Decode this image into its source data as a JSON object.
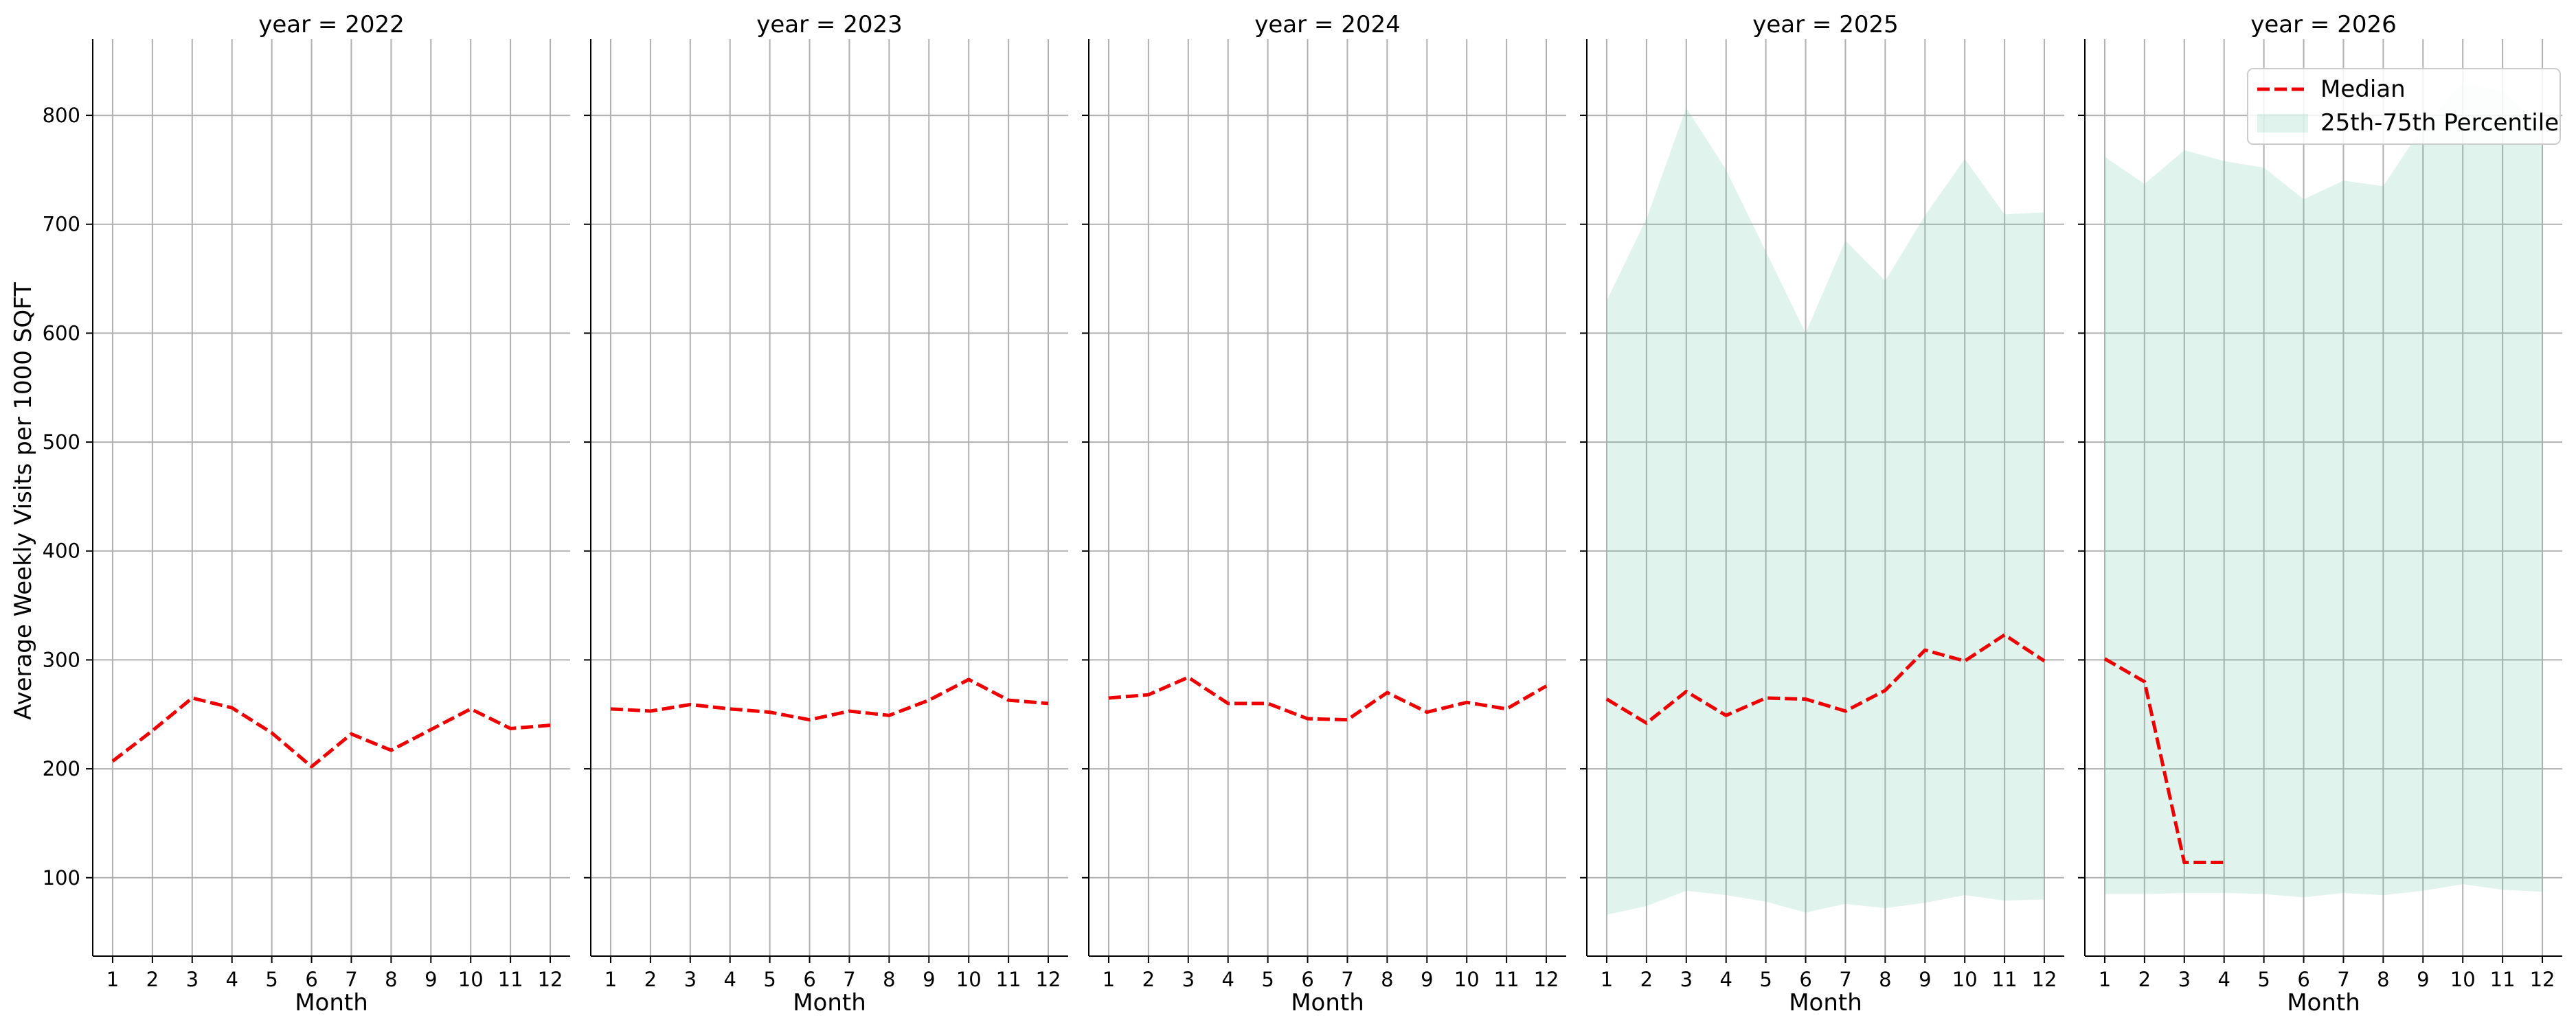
{
  "chart_data": {
    "type": "line",
    "facet_by": "year",
    "ylabel": "Average Weekly Visits per 1000 SQFT",
    "xlabel": "Month",
    "x_ticks": [
      "1",
      "2",
      "3",
      "4",
      "5",
      "6",
      "7",
      "8",
      "9",
      "10",
      "11",
      "12"
    ],
    "y_ticks": [
      "100",
      "200",
      "300",
      "400",
      "500",
      "600",
      "700",
      "800"
    ],
    "xlim": [
      0.5,
      12.5
    ],
    "ylim": [
      28,
      870
    ],
    "grid": true,
    "legend": {
      "placement": "top-right",
      "entries": [
        "Median",
        "25th-75th Percentile"
      ]
    },
    "colors": {
      "median": "#ee0000",
      "band": "#66c2a5"
    },
    "panels": [
      {
        "title": "year = 2022",
        "median": [
          {
            "x": 1,
            "y": 207
          },
          {
            "x": 2,
            "y": 235
          },
          {
            "x": 3,
            "y": 265
          },
          {
            "x": 4,
            "y": 256
          },
          {
            "x": 5,
            "y": 233
          },
          {
            "x": 6,
            "y": 202
          },
          {
            "x": 7,
            "y": 232
          },
          {
            "x": 8,
            "y": 217
          },
          {
            "x": 9,
            "y": 236
          },
          {
            "x": 10,
            "y": 255
          },
          {
            "x": 11,
            "y": 237
          },
          {
            "x": 12,
            "y": 240
          }
        ],
        "band": []
      },
      {
        "title": "year = 2023",
        "median": [
          {
            "x": 1,
            "y": 255
          },
          {
            "x": 2,
            "y": 253
          },
          {
            "x": 3,
            "y": 259
          },
          {
            "x": 4,
            "y": 255
          },
          {
            "x": 5,
            "y": 252
          },
          {
            "x": 6,
            "y": 245
          },
          {
            "x": 7,
            "y": 253
          },
          {
            "x": 8,
            "y": 249
          },
          {
            "x": 9,
            "y": 263
          },
          {
            "x": 10,
            "y": 282
          },
          {
            "x": 11,
            "y": 263
          },
          {
            "x": 12,
            "y": 260
          }
        ],
        "band": []
      },
      {
        "title": "year = 2024",
        "median": [
          {
            "x": 1,
            "y": 265
          },
          {
            "x": 2,
            "y": 268
          },
          {
            "x": 3,
            "y": 284
          },
          {
            "x": 4,
            "y": 260
          },
          {
            "x": 5,
            "y": 260
          },
          {
            "x": 6,
            "y": 246
          },
          {
            "x": 7,
            "y": 245
          },
          {
            "x": 8,
            "y": 270
          },
          {
            "x": 9,
            "y": 252
          },
          {
            "x": 10,
            "y": 261
          },
          {
            "x": 11,
            "y": 255
          },
          {
            "x": 12,
            "y": 276
          }
        ],
        "band": []
      },
      {
        "title": "year = 2025",
        "median": [
          {
            "x": 1,
            "y": 264
          },
          {
            "x": 2,
            "y": 242
          },
          {
            "x": 3,
            "y": 271
          },
          {
            "x": 4,
            "y": 249
          },
          {
            "x": 5,
            "y": 265
          },
          {
            "x": 6,
            "y": 264
          },
          {
            "x": 7,
            "y": 253
          },
          {
            "x": 8,
            "y": 272
          },
          {
            "x": 9,
            "y": 309
          },
          {
            "x": 10,
            "y": 299
          },
          {
            "x": 11,
            "y": 323
          },
          {
            "x": 12,
            "y": 299
          }
        ],
        "band": [
          {
            "x": 1,
            "low": 66,
            "high": 630
          },
          {
            "x": 2,
            "low": 74,
            "high": 705
          },
          {
            "x": 3,
            "low": 88,
            "high": 807
          },
          {
            "x": 4,
            "low": 84,
            "high": 750
          },
          {
            "x": 5,
            "low": 78,
            "high": 675
          },
          {
            "x": 6,
            "low": 68,
            "high": 600
          },
          {
            "x": 7,
            "low": 76,
            "high": 685
          },
          {
            "x": 8,
            "low": 72,
            "high": 648
          },
          {
            "x": 9,
            "low": 77,
            "high": 708
          },
          {
            "x": 10,
            "low": 84,
            "high": 760
          },
          {
            "x": 11,
            "low": 79,
            "high": 709
          },
          {
            "x": 12,
            "low": 80,
            "high": 711
          }
        ]
      },
      {
        "title": "year = 2026",
        "median": [
          {
            "x": 1,
            "y": 301
          },
          {
            "x": 2,
            "y": 280
          },
          {
            "x": 3,
            "y": 114
          },
          {
            "x": 4,
            "y": 114
          }
        ],
        "band": [
          {
            "x": 1,
            "low": 85,
            "high": 762
          },
          {
            "x": 2,
            "low": 85,
            "high": 737
          },
          {
            "x": 3,
            "low": 86,
            "high": 768
          },
          {
            "x": 4,
            "low": 86,
            "high": 758
          },
          {
            "x": 5,
            "low": 85,
            "high": 752
          },
          {
            "x": 6,
            "low": 82,
            "high": 723
          },
          {
            "x": 7,
            "low": 86,
            "high": 740
          },
          {
            "x": 8,
            "low": 84,
            "high": 735
          },
          {
            "x": 9,
            "low": 88,
            "high": 790
          },
          {
            "x": 10,
            "low": 94,
            "high": 830
          },
          {
            "x": 11,
            "low": 89,
            "high": 822
          },
          {
            "x": 12,
            "low": 87,
            "high": 790
          }
        ]
      }
    ]
  }
}
